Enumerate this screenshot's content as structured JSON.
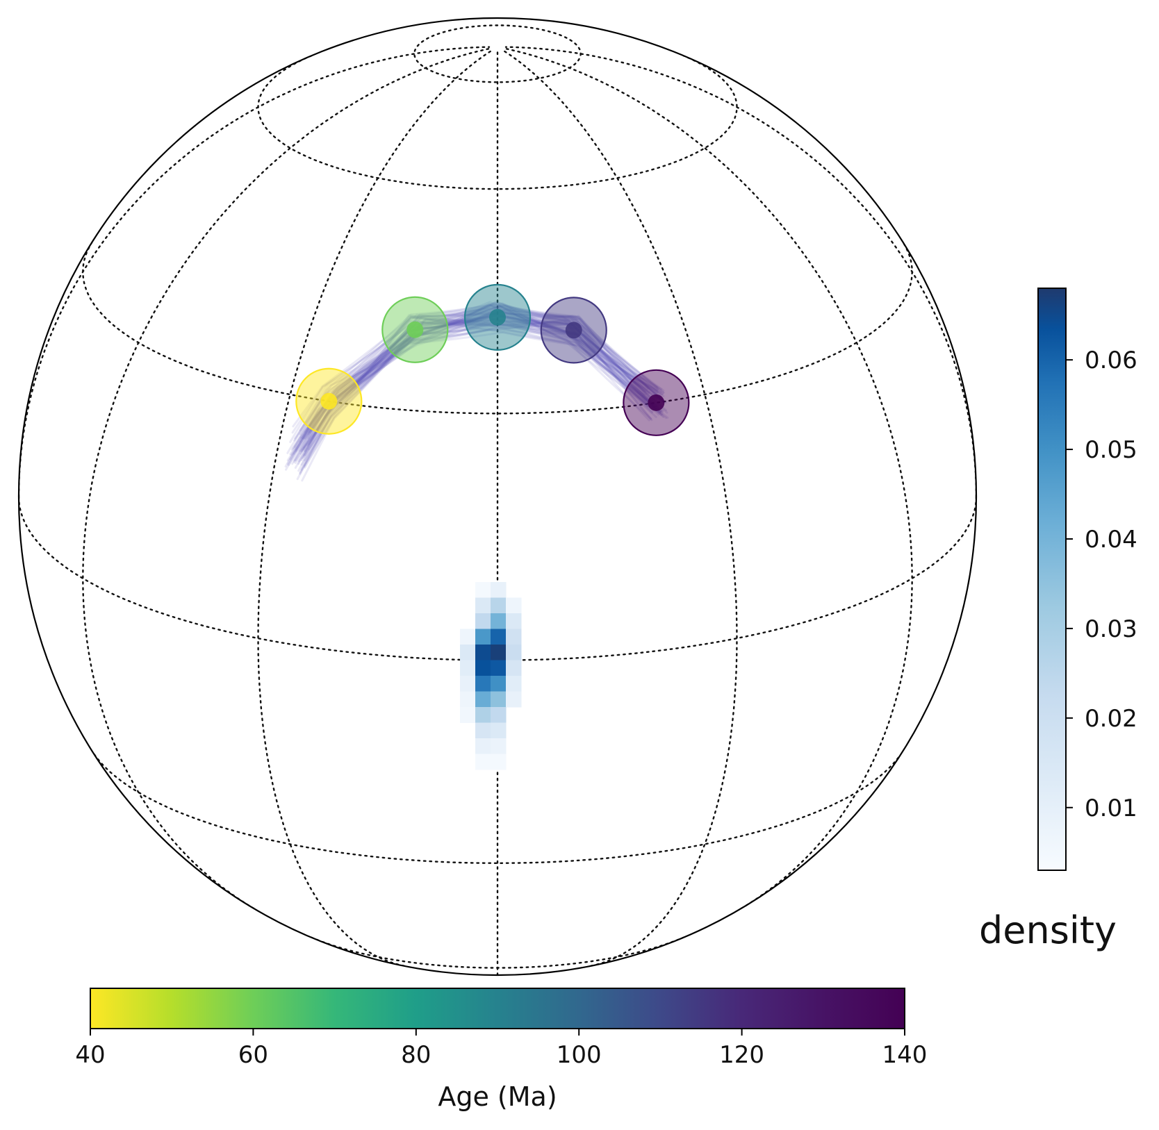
{
  "chart_data": {
    "type": "scatter",
    "projection": "orthographic globe with dotted graticule",
    "grid": true,
    "poles": {
      "ages": [
        40,
        60,
        90,
        115,
        140
      ],
      "colormap": "viridis_r",
      "marker": "dot with translucent confidence circle"
    },
    "paths": {
      "description": "ensemble of translucent blue-purple path lines through the poles"
    },
    "density": {
      "type": "heatmap",
      "colormap": "Blues",
      "cells": [
        [
          0,
          -4,
          0.004
        ],
        [
          1,
          -4,
          0.008
        ],
        [
          0,
          -3,
          0.012
        ],
        [
          1,
          -3,
          0.022
        ],
        [
          2,
          -3,
          0.006
        ],
        [
          0,
          -2,
          0.02
        ],
        [
          1,
          -2,
          0.034
        ],
        [
          2,
          -2,
          0.012
        ],
        [
          -1,
          -1,
          0.006
        ],
        [
          0,
          -1,
          0.042
        ],
        [
          1,
          -1,
          0.055
        ],
        [
          2,
          -1,
          0.016
        ],
        [
          -1,
          0,
          0.012
        ],
        [
          0,
          0,
          0.062
        ],
        [
          1,
          0,
          0.066
        ],
        [
          2,
          0,
          0.018
        ],
        [
          -1,
          1,
          0.01
        ],
        [
          0,
          1,
          0.06
        ],
        [
          1,
          1,
          0.058
        ],
        [
          2,
          1,
          0.014
        ],
        [
          -1,
          2,
          0.008
        ],
        [
          0,
          2,
          0.05
        ],
        [
          1,
          2,
          0.044
        ],
        [
          2,
          2,
          0.01
        ],
        [
          -1,
          3,
          0.006
        ],
        [
          0,
          3,
          0.036
        ],
        [
          1,
          3,
          0.03
        ],
        [
          2,
          3,
          0.008
        ],
        [
          -1,
          4,
          0.005
        ],
        [
          0,
          4,
          0.024
        ],
        [
          1,
          4,
          0.02
        ],
        [
          0,
          5,
          0.014
        ],
        [
          1,
          5,
          0.012
        ],
        [
          0,
          6,
          0.008
        ],
        [
          1,
          6,
          0.007
        ],
        [
          0,
          7,
          0.004
        ],
        [
          1,
          7,
          0.004
        ]
      ]
    },
    "age_colorbar": {
      "label": "Age (Ma)",
      "range": [
        40,
        140
      ],
      "ticks": [
        "40",
        "60",
        "80",
        "100",
        "120",
        "140"
      ],
      "colormap": "viridis (reversed, yellow to purple)",
      "placement": "bottom"
    },
    "density_colorbar": {
      "label": "density",
      "range": [
        0.003,
        0.068
      ],
      "ticks": [
        "0.01",
        "0.02",
        "0.03",
        "0.04",
        "0.05",
        "0.06"
      ],
      "colormap": "Blues",
      "placement": "right"
    }
  }
}
